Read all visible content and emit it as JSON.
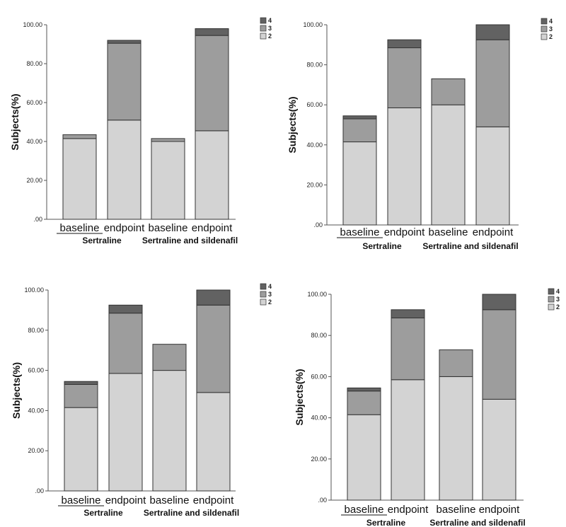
{
  "colors": {
    "level_2": "#d3d3d3",
    "level_3": "#9d9d9d",
    "level_4": "#626262",
    "axis": "#555555"
  },
  "legend_order": [
    "4",
    "3",
    "2"
  ],
  "chart_data": [
    {
      "type": "bar",
      "stacked": true,
      "ylabel": "Subjects(%)",
      "ylim": [
        0,
        100
      ],
      "yticks": [
        ".00",
        "20.00",
        "40.00",
        "60.00",
        "80.00",
        "100.00"
      ],
      "categories": [
        "baseline",
        "endpoint",
        "baseline",
        "endpoint"
      ],
      "groups": [
        {
          "label": "Sertraline",
          "span": [
            0,
            1
          ]
        },
        {
          "label": "Sertraline and sildenafil",
          "span": [
            2,
            3
          ]
        }
      ],
      "series": [
        {
          "name": "2",
          "values": [
            41.5,
            51.0,
            40.0,
            45.5
          ]
        },
        {
          "name": "3",
          "values": [
            2.0,
            39.5,
            1.5,
            49.0
          ]
        },
        {
          "name": "4",
          "values": [
            0.0,
            1.5,
            0.0,
            3.5
          ]
        }
      ]
    },
    {
      "type": "bar",
      "stacked": true,
      "ylabel": "Subjects(%)",
      "ylim": [
        0,
        100
      ],
      "yticks": [
        ".00",
        "20.00",
        "40.00",
        "60.00",
        "80.00",
        "100.00"
      ],
      "categories": [
        "baseline",
        "endpoint",
        "baseline",
        "endpoint"
      ],
      "groups": [
        {
          "label": "Sertraline",
          "span": [
            0,
            1
          ]
        },
        {
          "label": "Sertraline and sildenafil",
          "span": [
            2,
            3
          ]
        }
      ],
      "series": [
        {
          "name": "2",
          "values": [
            41.5,
            58.5,
            60.0,
            49.0
          ]
        },
        {
          "name": "3",
          "values": [
            11.5,
            30.0,
            13.0,
            43.5
          ]
        },
        {
          "name": "4",
          "values": [
            1.5,
            4.0,
            0.0,
            7.5
          ]
        }
      ]
    },
    {
      "type": "bar",
      "stacked": true,
      "ylabel": "Subjects(%)",
      "ylim": [
        0,
        100
      ],
      "yticks": [
        ".00",
        "20.00",
        "40.00",
        "60.00",
        "80.00",
        "100.00"
      ],
      "categories": [
        "baseline",
        "endpoint",
        "baseline",
        "endpoint"
      ],
      "groups": [
        {
          "label": "Sertraline",
          "span": [
            0,
            1
          ]
        },
        {
          "label": "Sertraline and sildenafil",
          "span": [
            2,
            3
          ]
        }
      ],
      "series": [
        {
          "name": "2",
          "values": [
            41.5,
            58.5,
            60.0,
            49.0
          ]
        },
        {
          "name": "3",
          "values": [
            11.5,
            30.0,
            13.0,
            43.5
          ]
        },
        {
          "name": "4",
          "values": [
            1.5,
            4.0,
            0.0,
            7.5
          ]
        }
      ]
    },
    {
      "type": "bar",
      "stacked": true,
      "ylabel": "Subjects(%)",
      "ylim": [
        0,
        100
      ],
      "yticks": [
        ".00",
        "20.00",
        "40.00",
        "60.00",
        "80.00",
        "100.00"
      ],
      "categories": [
        "baseline",
        "endpoint",
        "baseline",
        "endpoint"
      ],
      "groups": [
        {
          "label": "Sertraline",
          "span": [
            0,
            1
          ]
        },
        {
          "label": "Sertraline and sildenafil",
          "span": [
            2,
            3
          ]
        }
      ],
      "series": [
        {
          "name": "2",
          "values": [
            41.5,
            58.5,
            60.0,
            49.0
          ]
        },
        {
          "name": "3",
          "values": [
            11.5,
            30.0,
            13.0,
            43.5
          ]
        },
        {
          "name": "4",
          "values": [
            1.5,
            4.0,
            0.0,
            7.5
          ]
        }
      ]
    }
  ]
}
